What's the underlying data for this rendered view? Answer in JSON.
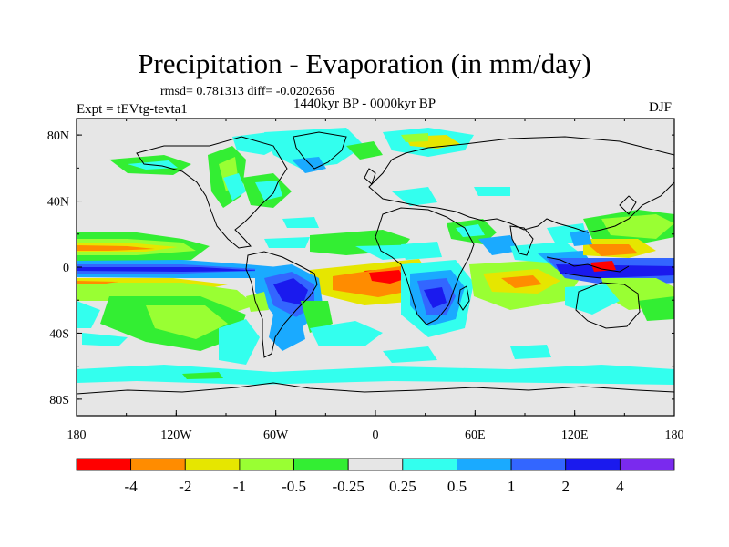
{
  "title": "Precipitation - Evaporation (in mm/day)",
  "stats_line": "rmsd= 0.781313 diff= -0.0202656",
  "period": "1440kyr BP - 0000kyr BP",
  "experiment": "Expt = tEVtg-tevta1",
  "season": "DJF",
  "map": {
    "projection": "cylindrical equidistant",
    "land_fill": "#e6e6e6",
    "lat_labels": [
      "80N",
      "40N",
      "0",
      "40S",
      "80S"
    ],
    "lat_values": [
      80,
      40,
      0,
      -40,
      -80
    ],
    "lon_labels": [
      "180",
      "120W",
      "60W",
      "0",
      "60E",
      "120E",
      "180"
    ],
    "lon_values": [
      -180,
      -120,
      -60,
      0,
      60,
      120,
      180
    ]
  },
  "colorbar": {
    "colors": [
      "#ff0000",
      "#ff8c00",
      "#e6e600",
      "#99ff33",
      "#33ee33",
      "#e6e6e6",
      "#33ffee",
      "#1aaaff",
      "#3366ff",
      "#1a1aee",
      "#7a2aee"
    ],
    "labels": [
      "-4",
      "-2",
      "-1",
      "-0.5",
      "-0.25",
      "0.25",
      "0.5",
      "1",
      "2",
      "4"
    ]
  },
  "colors": {
    "strong_negative": "#ff0000",
    "negative": "#ff8c00",
    "weak_negative": "#e6e600",
    "slight_negative": "#99ff33",
    "near_zero_negative": "#33ee33",
    "neutral": "#e6e6e6",
    "near_zero_positive": "#33ffee",
    "slight_positive": "#1aaaff",
    "positive": "#3366ff",
    "strong_positive": "#1a1aee",
    "very_strong_positive": "#7a2aee"
  }
}
